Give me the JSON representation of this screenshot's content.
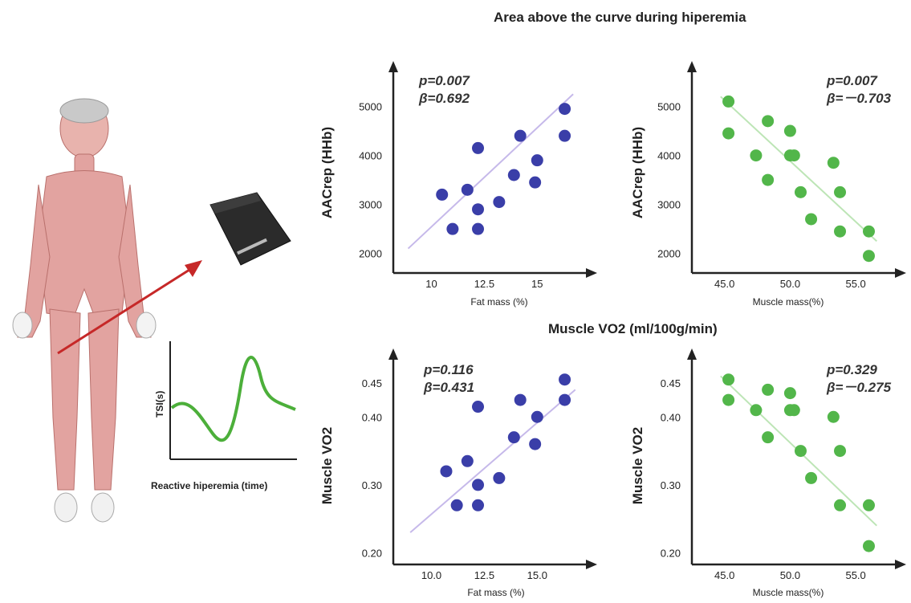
{
  "titles": {
    "top": "Area above the curve during hiperemia",
    "middle": "Muscle VO2 (ml/100g/min)"
  },
  "illustration": {
    "tsi_ylabel": "TSI(s)",
    "tsi_xlabel": "Reactive hiperemia (time)",
    "colors": {
      "arrow": "#c62828",
      "curve": "#4caf3a",
      "body": "#e2a3a0",
      "device": "#2b2b2b"
    }
  },
  "chart_data": [
    {
      "type": "scatter",
      "xlabel": "Fat mass (%)",
      "ylabel": "AACrep (HHb)",
      "xlim": [
        8.5,
        17
      ],
      "ylim": [
        1700,
        5500
      ],
      "xticks": [
        10,
        12.5,
        15
      ],
      "xtick_labels": [
        "10",
        "12.5",
        "15"
      ],
      "yticks": [
        2000,
        3000,
        4000,
        5000
      ],
      "ytick_labels": [
        "2000",
        "3000",
        "4000",
        "5000"
      ],
      "points_x": [
        10.5,
        11.0,
        11.7,
        12.2,
        12.2,
        12.2,
        13.2,
        13.9,
        14.2,
        14.9,
        15.0,
        16.3,
        16.3
      ],
      "points_y": [
        3200,
        2500,
        3300,
        4150,
        2900,
        2500,
        3050,
        3600,
        4400,
        3450,
        3900,
        4400,
        4950
      ],
      "trend": [
        [
          8.9,
          2100
        ],
        [
          16.7,
          5250
        ]
      ],
      "annotations": [
        "p=0.007",
        "β=0.692"
      ],
      "colors": {
        "points": "#3a3ea8",
        "trend": "#c6b9ea"
      }
    },
    {
      "type": "scatter",
      "xlabel": "Muscle mass(%)",
      "ylabel": "AACrep (HHb)",
      "xlim": [
        43,
        57.5
      ],
      "ylim": [
        1700,
        5500
      ],
      "xticks": [
        45,
        50,
        55
      ],
      "xtick_labels": [
        "45.0",
        "50.0",
        "55.0"
      ],
      "yticks": [
        2000,
        3000,
        4000,
        5000
      ],
      "ytick_labels": [
        "2000",
        "3000",
        "4000",
        "5000"
      ],
      "points_x": [
        45.3,
        45.3,
        47.4,
        48.3,
        48.3,
        50.0,
        50.0,
        50.3,
        50.8,
        51.6,
        53.3,
        53.8,
        53.8,
        56.0,
        56.0
      ],
      "points_y": [
        5100,
        4450,
        4000,
        4700,
        3500,
        4500,
        4000,
        4000,
        3250,
        2700,
        3850,
        3250,
        2450,
        2450,
        1950
      ],
      "trend": [
        [
          44.7,
          5200
        ],
        [
          56.6,
          2250
        ]
      ],
      "annotations": [
        "p=0.007",
        "β=－0.703"
      ],
      "colors": {
        "points": "#52b64a",
        "trend": "#bde5b6"
      }
    },
    {
      "type": "scatter",
      "xlabel": "Fat mass (%)",
      "ylabel": "Muscle VO2",
      "xlim": [
        8.5,
        17
      ],
      "ylim": [
        0.19,
        0.47
      ],
      "xticks": [
        10,
        12.5,
        15
      ],
      "xtick_labels": [
        "10.0",
        "12.5",
        "15.0"
      ],
      "yticks": [
        0.2,
        0.3,
        0.4,
        0.45
      ],
      "ytick_labels": [
        "0.20",
        "0.30",
        "0.40",
        "0.45"
      ],
      "points_x": [
        10.7,
        11.2,
        11.7,
        12.2,
        12.2,
        12.2,
        13.2,
        13.9,
        14.2,
        14.9,
        15.0,
        16.3,
        16.3
      ],
      "points_y": [
        0.32,
        0.27,
        0.335,
        0.415,
        0.3,
        0.27,
        0.31,
        0.37,
        0.425,
        0.36,
        0.4,
        0.425,
        0.455
      ],
      "trend": [
        [
          9.0,
          0.23
        ],
        [
          16.8,
          0.44
        ]
      ],
      "annotations": [
        "p=0.116",
        "β=0.431"
      ],
      "colors": {
        "points": "#3a3ea8",
        "trend": "#c6b9ea"
      }
    },
    {
      "type": "scatter",
      "xlabel": "Muscle mass(%)",
      "ylabel": "Muscle VO2",
      "xlim": [
        43,
        57.5
      ],
      "ylim": [
        0.19,
        0.47
      ],
      "xticks": [
        45,
        50,
        55
      ],
      "xtick_labels": [
        "45.0",
        "50.0",
        "55.0"
      ],
      "yticks": [
        0.2,
        0.3,
        0.4,
        0.45
      ],
      "ytick_labels": [
        "0.20",
        "0.30",
        "0.40",
        "0.45"
      ],
      "points_x": [
        45.3,
        45.3,
        47.4,
        48.3,
        48.3,
        50.0,
        50.0,
        50.3,
        50.8,
        51.6,
        53.3,
        53.8,
        53.8,
        56.0,
        56.0
      ],
      "points_y": [
        0.455,
        0.425,
        0.41,
        0.44,
        0.37,
        0.435,
        0.41,
        0.41,
        0.35,
        0.31,
        0.4,
        0.35,
        0.27,
        0.27,
        0.21
      ],
      "trend": [
        [
          44.7,
          0.46
        ],
        [
          56.6,
          0.24
        ]
      ],
      "annotations": [
        "p=0.329",
        "β=－0.275"
      ],
      "colors": {
        "points": "#52b64a",
        "trend": "#bde5b6"
      }
    }
  ]
}
